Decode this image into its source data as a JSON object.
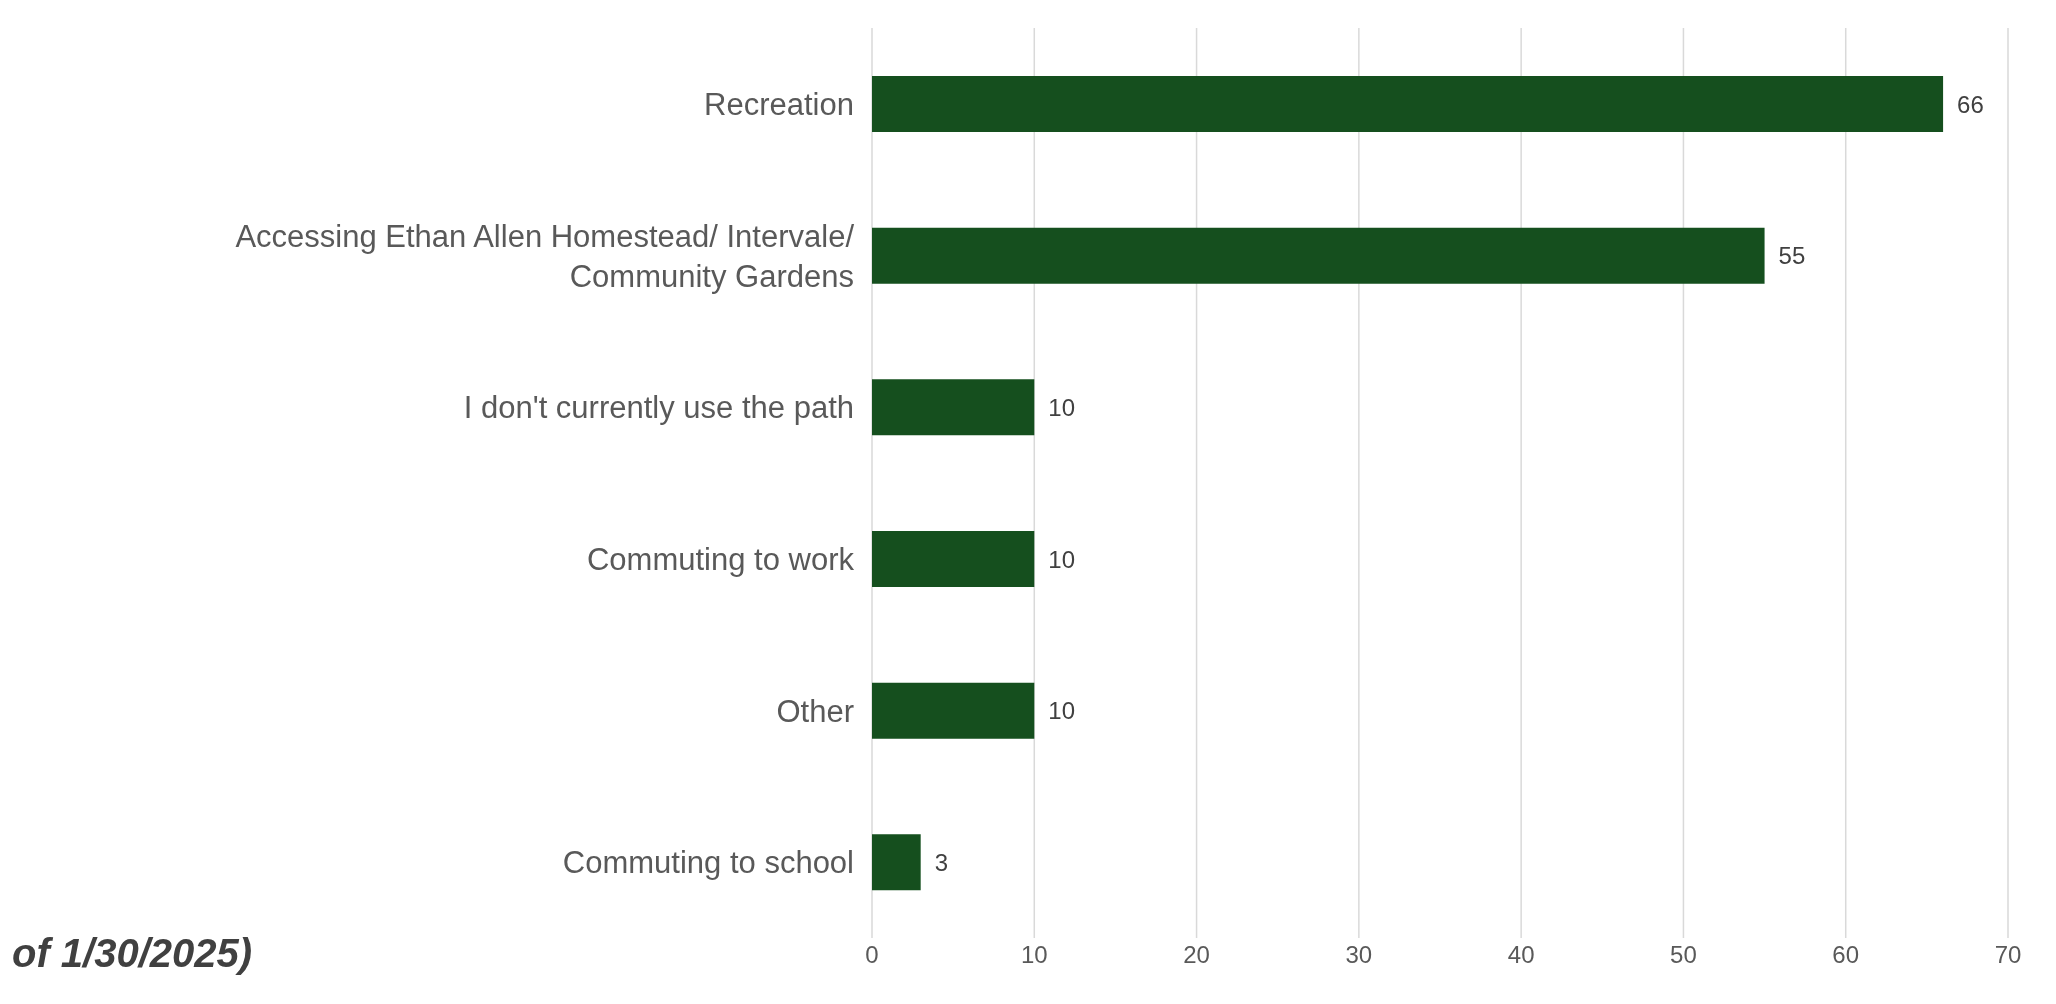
{
  "chart_data": {
    "type": "bar",
    "orientation": "horizontal",
    "categories": [
      "Recreation",
      "Accessing Ethan Allen Homestead/ Intervale/ Community Gardens",
      "I don't currently use the path",
      "Commuting to work ",
      "Other",
      "Commuting to school"
    ],
    "values": [
      66,
      55,
      10,
      10,
      10,
      3
    ],
    "color": "#154f1e",
    "data_labels": true,
    "xlim": [
      0,
      70
    ],
    "xticks": [
      0,
      10,
      20,
      30,
      40,
      50,
      60,
      70
    ],
    "grid": "x",
    "annotations": [
      "of 1/30/2025)"
    ]
  }
}
